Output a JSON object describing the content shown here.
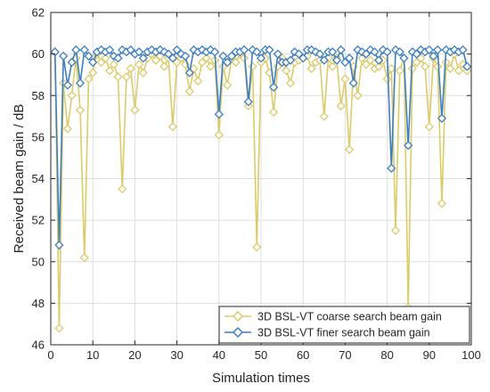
{
  "chart_data": {
    "type": "line",
    "title": "",
    "xlabel": "Simulation times",
    "ylabel": "Received beam gain / dB",
    "xlim": [
      0,
      100
    ],
    "ylim": [
      46,
      62
    ],
    "xticks": [
      0,
      10,
      20,
      30,
      40,
      50,
      60,
      70,
      80,
      90,
      100
    ],
    "yticks": [
      46,
      48,
      50,
      52,
      54,
      56,
      58,
      60,
      62
    ],
    "grid": true,
    "legend_position": "bottom-right",
    "x": [
      1,
      2,
      3,
      4,
      5,
      6,
      7,
      8,
      9,
      10,
      11,
      12,
      13,
      14,
      15,
      16,
      17,
      18,
      19,
      20,
      21,
      22,
      23,
      24,
      25,
      26,
      27,
      28,
      29,
      30,
      31,
      32,
      33,
      34,
      35,
      36,
      37,
      38,
      39,
      40,
      41,
      42,
      43,
      44,
      45,
      46,
      47,
      48,
      49,
      50,
      51,
      52,
      53,
      54,
      55,
      56,
      57,
      58,
      59,
      60,
      61,
      62,
      63,
      64,
      65,
      66,
      67,
      68,
      69,
      70,
      71,
      72,
      73,
      74,
      75,
      76,
      77,
      78,
      79,
      80,
      81,
      82,
      83,
      84,
      85,
      86,
      87,
      88,
      89,
      90,
      91,
      92,
      93,
      94,
      95,
      96,
      97,
      98,
      99
    ],
    "series": [
      {
        "name": "3D BSL-VT coarse search beam gain",
        "color": "#dccb6a",
        "values": [
          60.1,
          46.8,
          58.6,
          56.4,
          58,
          59.8,
          57.3,
          50.2,
          58.8,
          59.1,
          60,
          59.6,
          59.8,
          59.2,
          59.5,
          58.9,
          53.5,
          58.9,
          59.3,
          57.3,
          59.5,
          59.1,
          59.8,
          60,
          59.7,
          59.9,
          59.4,
          59.8,
          56.5,
          59.6,
          59.8,
          59.5,
          58.2,
          59.3,
          58.7,
          59.6,
          59.8,
          59.4,
          59.7,
          56.1,
          59.4,
          58.5,
          59.8,
          59.6,
          60,
          59.8,
          57.5,
          59.4,
          50.7,
          59.6,
          59.8,
          59.1,
          57.2,
          59.4,
          59.8,
          59.2,
          58.6,
          59.6,
          59.7,
          59.8,
          59.9,
          59.3,
          59.6,
          59.7,
          57,
          59.8,
          59.4,
          59.8,
          57.5,
          58.8,
          55.4,
          59.4,
          58,
          59.8,
          59.5,
          59.7,
          59.3,
          59.4,
          59.7,
          58.8,
          59.3,
          51.5,
          59.2,
          59.8,
          47.8,
          59.3,
          59.6,
          59.8,
          59.4,
          56.5,
          59.8,
          59.4,
          52.8,
          59.6,
          59.3,
          60,
          59.2,
          59.5,
          59.2
        ]
      },
      {
        "name": "3D BSL-VT finer search beam gain",
        "color": "#3d7ebf",
        "values": [
          60.1,
          50.8,
          59.9,
          58.5,
          59.6,
          60.2,
          58.6,
          60.2,
          59.9,
          59.6,
          60.1,
          60.2,
          60.1,
          60.2,
          59.9,
          59.8,
          60.2,
          60.1,
          60.2,
          60,
          60.1,
          59.8,
          60.1,
          60.2,
          60.1,
          60.2,
          60.1,
          60,
          59.8,
          60.2,
          60,
          59.9,
          59.1,
          60.2,
          60.1,
          60.2,
          60.1,
          60.2,
          60.1,
          57.1,
          59.9,
          59.6,
          59.9,
          60.1,
          60.1,
          60.2,
          57.7,
          60.2,
          60.1,
          59.8,
          60.2,
          60.2,
          58.4,
          60,
          59.6,
          59.6,
          59.7,
          60.1,
          60,
          59.8,
          60.2,
          60.2,
          60.1,
          60,
          59.7,
          60.1,
          60.1,
          59.7,
          60.2,
          59.6,
          59.8,
          58.6,
          60.2,
          60.1,
          60,
          60.2,
          60.1,
          59.7,
          60.2,
          60.1,
          54.5,
          60.2,
          60.1,
          59.8,
          55.6,
          60.1,
          60,
          60.2,
          60.1,
          60.2,
          59.9,
          60.2,
          56.9,
          60.2,
          60.1,
          60.2,
          60.1,
          60.2,
          59.4
        ]
      }
    ]
  }
}
